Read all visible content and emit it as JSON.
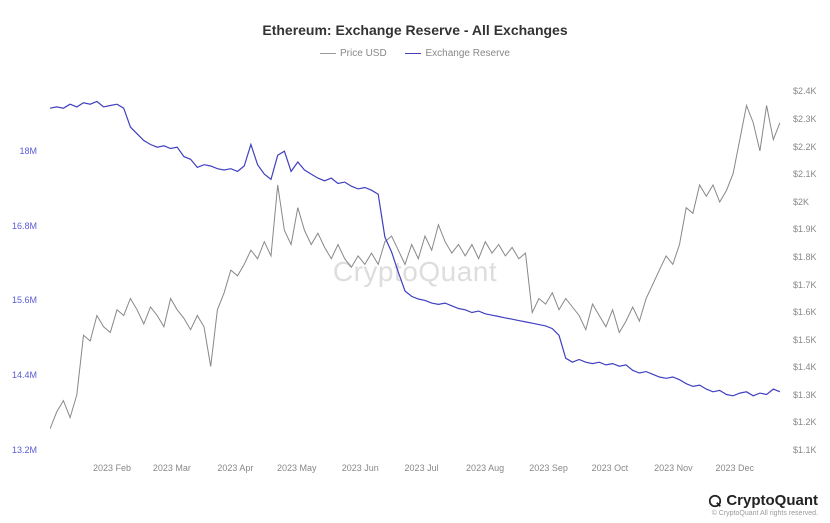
{
  "chart": {
    "type": "line",
    "title": "Ethereum: Exchange Reserve - All Exchanges",
    "title_fontsize": 14,
    "title_color": "#333333",
    "background_color": "#ffffff",
    "watermark_text": "CryptoQuant",
    "watermark_color": "#dddddd",
    "watermark_fontsize": 28,
    "legend": {
      "items": [
        {
          "label": "Price USD",
          "color": "#999999"
        },
        {
          "label": "Exchange Reserve",
          "color": "#4040c0"
        }
      ],
      "fontsize": 10
    },
    "x_axis": {
      "ticks": [
        "2023 Feb",
        "2023 Mar",
        "2023 Apr",
        "2023 May",
        "2023 Jun",
        "2023 Jul",
        "2023 Aug",
        "2023 Sep",
        "2023 Oct",
        "2023 Nov",
        "2023 Dec"
      ],
      "tick_positions_pct": [
        8.5,
        16.7,
        25.4,
        33.8,
        42.5,
        50.9,
        59.6,
        68.3,
        76.7,
        85.4,
        93.8
      ],
      "fontsize": 9,
      "color": "#888888"
    },
    "y_axis_left": {
      "label": "Exchange Reserve",
      "ticks": [
        "18M",
        "16.8M",
        "15.6M",
        "14.4M",
        "13.2M"
      ],
      "tick_values": [
        18000000,
        16800000,
        15600000,
        14400000,
        13200000
      ],
      "tick_positions_pct": [
        18.5,
        38.0,
        57.5,
        77.0,
        96.5
      ],
      "fontsize": 9,
      "color": "#5b5bd6",
      "ylim": [
        13200000,
        18900000
      ]
    },
    "y_axis_right": {
      "label": "Price USD",
      "ticks": [
        "$2.4K",
        "$2.3K",
        "$2.2K",
        "$2.1K",
        "$2K",
        "$1.9K",
        "$1.8K",
        "$1.7K",
        "$1.6K",
        "$1.5K",
        "$1.4K",
        "$1.3K",
        "$1.2K",
        "$1.1K"
      ],
      "tick_values": [
        2400,
        2300,
        2200,
        2100,
        2000,
        1900,
        1800,
        1700,
        1600,
        1500,
        1400,
        1300,
        1200,
        1100
      ],
      "tick_positions_pct": [
        3.0,
        10.2,
        17.4,
        24.6,
        31.8,
        39.0,
        46.2,
        53.4,
        60.6,
        67.8,
        75.0,
        82.2,
        89.4,
        96.6
      ],
      "fontsize": 9,
      "color": "#888888",
      "ylim": [
        1100,
        2450
      ]
    },
    "series": {
      "price_usd": {
        "color": "#888888",
        "line_width": 1,
        "data": [
          [
            0,
            1220
          ],
          [
            1,
            1280
          ],
          [
            2,
            1320
          ],
          [
            3,
            1260
          ],
          [
            4,
            1340
          ],
          [
            5,
            1550
          ],
          [
            6,
            1530
          ],
          [
            7,
            1620
          ],
          [
            8,
            1580
          ],
          [
            9,
            1560
          ],
          [
            10,
            1640
          ],
          [
            11,
            1620
          ],
          [
            12,
            1680
          ],
          [
            13,
            1640
          ],
          [
            14,
            1590
          ],
          [
            15,
            1650
          ],
          [
            16,
            1620
          ],
          [
            17,
            1580
          ],
          [
            18,
            1680
          ],
          [
            19,
            1640
          ],
          [
            20,
            1610
          ],
          [
            21,
            1570
          ],
          [
            22,
            1620
          ],
          [
            23,
            1580
          ],
          [
            24,
            1440
          ],
          [
            25,
            1640
          ],
          [
            26,
            1700
          ],
          [
            27,
            1780
          ],
          [
            28,
            1760
          ],
          [
            29,
            1800
          ],
          [
            30,
            1850
          ],
          [
            31,
            1820
          ],
          [
            32,
            1880
          ],
          [
            33,
            1830
          ],
          [
            34,
            2080
          ],
          [
            35,
            1920
          ],
          [
            36,
            1870
          ],
          [
            37,
            2000
          ],
          [
            38,
            1920
          ],
          [
            39,
            1870
          ],
          [
            40,
            1910
          ],
          [
            41,
            1860
          ],
          [
            42,
            1820
          ],
          [
            43,
            1870
          ],
          [
            44,
            1820
          ],
          [
            45,
            1790
          ],
          [
            46,
            1830
          ],
          [
            47,
            1800
          ],
          [
            48,
            1840
          ],
          [
            49,
            1800
          ],
          [
            50,
            1880
          ],
          [
            51,
            1900
          ],
          [
            52,
            1850
          ],
          [
            53,
            1800
          ],
          [
            54,
            1870
          ],
          [
            55,
            1820
          ],
          [
            56,
            1900
          ],
          [
            57,
            1850
          ],
          [
            58,
            1940
          ],
          [
            59,
            1880
          ],
          [
            60,
            1840
          ],
          [
            61,
            1870
          ],
          [
            62,
            1830
          ],
          [
            63,
            1870
          ],
          [
            64,
            1820
          ],
          [
            65,
            1880
          ],
          [
            66,
            1840
          ],
          [
            67,
            1870
          ],
          [
            68,
            1830
          ],
          [
            69,
            1860
          ],
          [
            70,
            1820
          ],
          [
            71,
            1840
          ],
          [
            72,
            1630
          ],
          [
            73,
            1680
          ],
          [
            74,
            1660
          ],
          [
            75,
            1700
          ],
          [
            76,
            1640
          ],
          [
            77,
            1680
          ],
          [
            78,
            1650
          ],
          [
            79,
            1620
          ],
          [
            80,
            1570
          ],
          [
            81,
            1660
          ],
          [
            82,
            1620
          ],
          [
            83,
            1580
          ],
          [
            84,
            1640
          ],
          [
            85,
            1560
          ],
          [
            86,
            1600
          ],
          [
            87,
            1650
          ],
          [
            88,
            1600
          ],
          [
            89,
            1680
          ],
          [
            90,
            1730
          ],
          [
            91,
            1780
          ],
          [
            92,
            1830
          ],
          [
            93,
            1800
          ],
          [
            94,
            1870
          ],
          [
            95,
            2000
          ],
          [
            96,
            1980
          ],
          [
            97,
            2080
          ],
          [
            98,
            2040
          ],
          [
            99,
            2080
          ],
          [
            100,
            2020
          ],
          [
            101,
            2060
          ],
          [
            102,
            2120
          ],
          [
            103,
            2240
          ],
          [
            104,
            2360
          ],
          [
            105,
            2300
          ],
          [
            106,
            2200
          ],
          [
            107,
            2360
          ],
          [
            108,
            2240
          ],
          [
            109,
            2300
          ]
        ]
      },
      "exchange_reserve": {
        "color": "#4040c0",
        "line_width": 1.2,
        "data": [
          [
            0,
            18480000
          ],
          [
            1,
            18500000
          ],
          [
            2,
            18480000
          ],
          [
            3,
            18540000
          ],
          [
            4,
            18500000
          ],
          [
            5,
            18560000
          ],
          [
            6,
            18540000
          ],
          [
            7,
            18580000
          ],
          [
            8,
            18500000
          ],
          [
            9,
            18520000
          ],
          [
            10,
            18540000
          ],
          [
            11,
            18480000
          ],
          [
            12,
            18200000
          ],
          [
            13,
            18100000
          ],
          [
            14,
            18000000
          ],
          [
            15,
            17940000
          ],
          [
            16,
            17900000
          ],
          [
            17,
            17920000
          ],
          [
            18,
            17880000
          ],
          [
            19,
            17900000
          ],
          [
            20,
            17760000
          ],
          [
            21,
            17720000
          ],
          [
            22,
            17600000
          ],
          [
            23,
            17640000
          ],
          [
            24,
            17620000
          ],
          [
            25,
            17580000
          ],
          [
            26,
            17560000
          ],
          [
            27,
            17580000
          ],
          [
            28,
            17540000
          ],
          [
            29,
            17620000
          ],
          [
            30,
            17940000
          ],
          [
            31,
            17640000
          ],
          [
            32,
            17500000
          ],
          [
            33,
            17420000
          ],
          [
            34,
            17780000
          ],
          [
            35,
            17840000
          ],
          [
            36,
            17540000
          ],
          [
            37,
            17680000
          ],
          [
            38,
            17560000
          ],
          [
            39,
            17500000
          ],
          [
            40,
            17440000
          ],
          [
            41,
            17400000
          ],
          [
            42,
            17440000
          ],
          [
            43,
            17360000
          ],
          [
            44,
            17380000
          ],
          [
            45,
            17320000
          ],
          [
            46,
            17280000
          ],
          [
            47,
            17300000
          ],
          [
            48,
            17260000
          ],
          [
            49,
            17200000
          ],
          [
            50,
            16560000
          ],
          [
            51,
            16340000
          ],
          [
            52,
            16040000
          ],
          [
            53,
            15760000
          ],
          [
            54,
            15680000
          ],
          [
            55,
            15640000
          ],
          [
            56,
            15620000
          ],
          [
            57,
            15580000
          ],
          [
            58,
            15560000
          ],
          [
            59,
            15580000
          ],
          [
            60,
            15540000
          ],
          [
            61,
            15500000
          ],
          [
            62,
            15480000
          ],
          [
            63,
            15440000
          ],
          [
            64,
            15460000
          ],
          [
            65,
            15420000
          ],
          [
            66,
            15400000
          ],
          [
            67,
            15380000
          ],
          [
            68,
            15360000
          ],
          [
            69,
            15340000
          ],
          [
            70,
            15320000
          ],
          [
            71,
            15300000
          ],
          [
            72,
            15280000
          ],
          [
            73,
            15260000
          ],
          [
            74,
            15240000
          ],
          [
            75,
            15200000
          ],
          [
            76,
            15100000
          ],
          [
            77,
            14760000
          ],
          [
            78,
            14700000
          ],
          [
            79,
            14740000
          ],
          [
            80,
            14700000
          ],
          [
            81,
            14680000
          ],
          [
            82,
            14700000
          ],
          [
            83,
            14660000
          ],
          [
            84,
            14680000
          ],
          [
            85,
            14640000
          ],
          [
            86,
            14660000
          ],
          [
            87,
            14580000
          ],
          [
            88,
            14540000
          ],
          [
            89,
            14560000
          ],
          [
            90,
            14520000
          ],
          [
            91,
            14480000
          ],
          [
            92,
            14460000
          ],
          [
            93,
            14480000
          ],
          [
            94,
            14440000
          ],
          [
            95,
            14380000
          ],
          [
            96,
            14340000
          ],
          [
            97,
            14360000
          ],
          [
            98,
            14300000
          ],
          [
            99,
            14260000
          ],
          [
            100,
            14280000
          ],
          [
            101,
            14220000
          ],
          [
            102,
            14200000
          ],
          [
            103,
            14240000
          ],
          [
            104,
            14260000
          ],
          [
            105,
            14200000
          ],
          [
            106,
            14240000
          ],
          [
            107,
            14220000
          ],
          [
            108,
            14300000
          ],
          [
            109,
            14260000
          ]
        ]
      }
    }
  },
  "footer": {
    "brand": "CryptoQuant",
    "copyright": "© CryptoQuant All rights reserved.",
    "brand_color": "#222222",
    "copyright_color": "#999999"
  }
}
